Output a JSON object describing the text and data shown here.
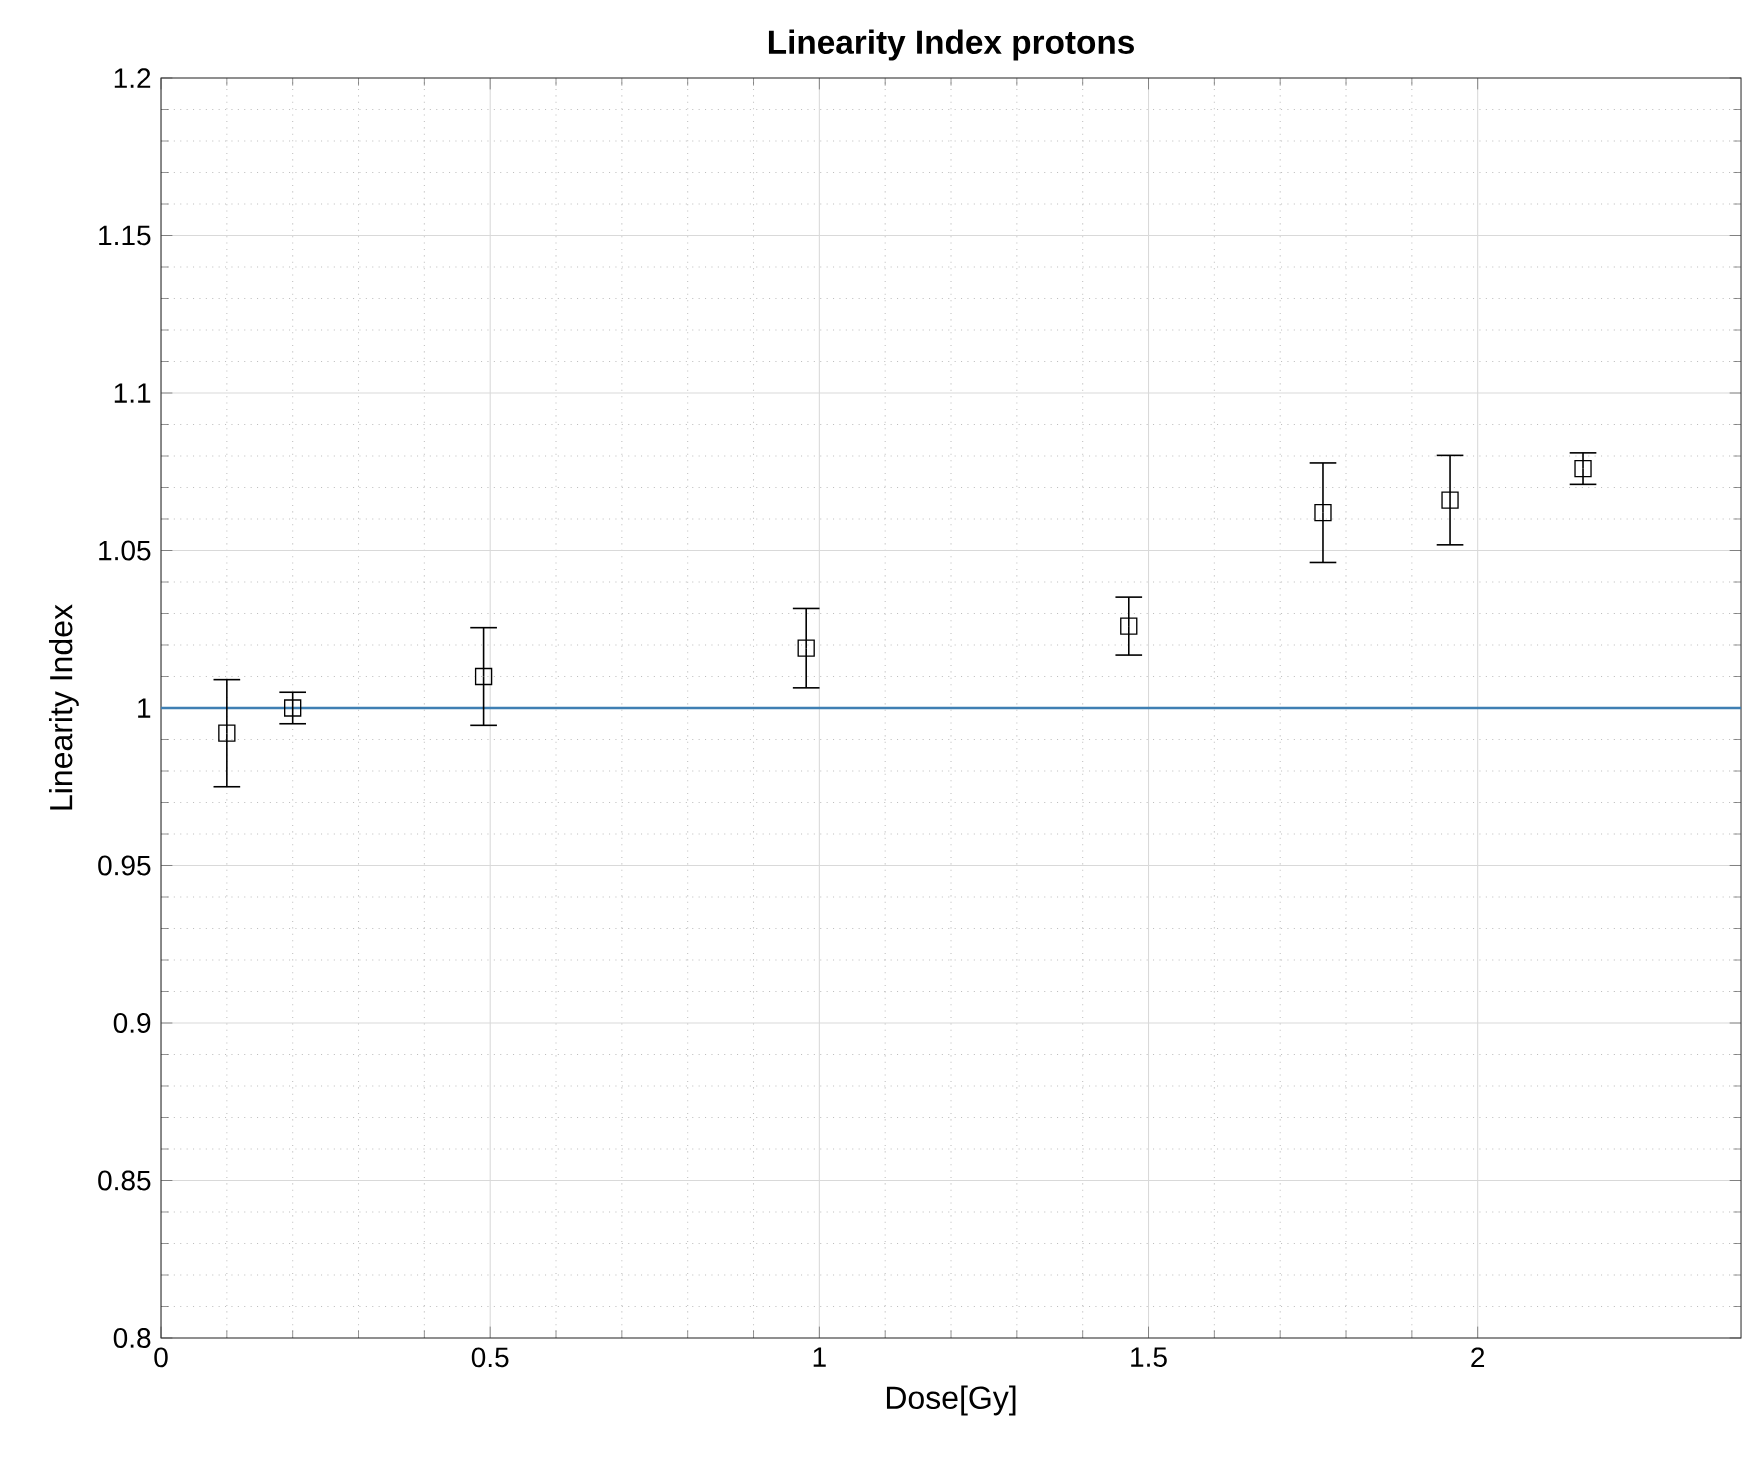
{
  "chart_data": {
    "type": "scatter",
    "title": "Linearity Index protons",
    "xlabel": "Dose[Gy]",
    "ylabel": "Linearity Index",
    "x": [
      0.1,
      0.2,
      0.49,
      0.98,
      1.47,
      1.765,
      1.958,
      2.16
    ],
    "values": [
      0.992,
      1.0,
      1.01,
      1.019,
      1.026,
      1.062,
      1.066,
      1.076
    ],
    "errors": [
      0.017,
      0.005,
      0.0155,
      0.0126,
      0.0092,
      0.0158,
      0.0142,
      0.005
    ],
    "color": "#000000",
    "marker": "square",
    "xlim": [
      0,
      2.4
    ],
    "ylim": [
      0.8,
      1.2
    ],
    "xticks": [
      0,
      0.5,
      1,
      1.5,
      2
    ],
    "yticks": [
      0.8,
      0.85,
      0.9,
      0.95,
      1,
      1.05,
      1.1,
      1.15,
      1.2
    ],
    "ref_lines": [
      {
        "axis": "y",
        "value": 1,
        "color": "#3f7fb3"
      }
    ],
    "grid": true
  }
}
